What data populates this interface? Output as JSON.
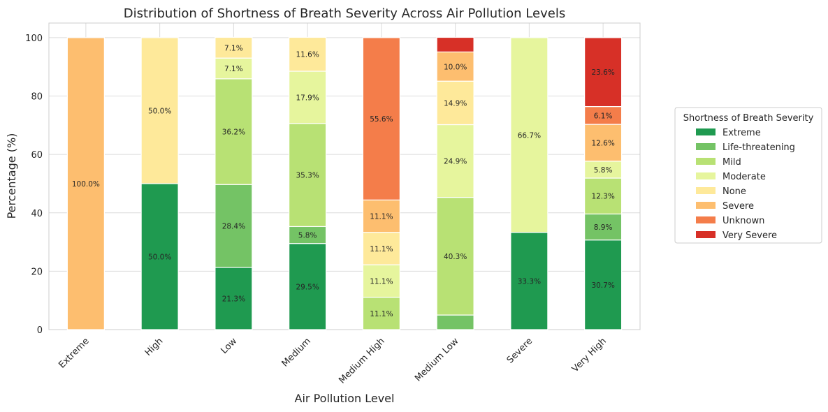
{
  "chart_data": {
    "type": "bar",
    "stacked": true,
    "title": "Distribution of Shortness of Breath Severity Across Air Pollution Levels",
    "xlabel": "Air Pollution Level",
    "ylabel": "Percentage (%)",
    "ylim": [
      0,
      105
    ],
    "yticks": [
      0,
      20,
      40,
      60,
      80,
      100
    ],
    "grid": true,
    "legend_position": "right",
    "legend_title": "Shortness of Breath Severity",
    "categories": [
      "Extreme",
      "High",
      "Low",
      "Medium",
      "Medium High",
      "Medium Low",
      "Severe",
      "Very High"
    ],
    "series": [
      {
        "name": "Extreme",
        "color": "#1f9a50",
        "values": [
          0,
          50.0,
          21.3,
          29.5,
          0,
          0,
          33.3,
          30.7
        ]
      },
      {
        "name": "Life-threatening",
        "color": "#74c365",
        "values": [
          0,
          0,
          28.4,
          5.8,
          0,
          5.0,
          0,
          8.9
        ]
      },
      {
        "name": "Mild",
        "color": "#b8e174",
        "values": [
          0,
          0,
          36.2,
          35.3,
          11.1,
          40.3,
          0,
          12.3
        ]
      },
      {
        "name": "Moderate",
        "color": "#e6f59d",
        "values": [
          0,
          0,
          7.1,
          17.9,
          11.1,
          24.9,
          66.7,
          5.8
        ]
      },
      {
        "name": "None",
        "color": "#fee99a",
        "values": [
          0,
          50.0,
          7.1,
          11.6,
          11.1,
          14.9,
          0,
          0
        ]
      },
      {
        "name": "Severe",
        "color": "#fdbe6f",
        "values": [
          100.0,
          0,
          0,
          0,
          11.1,
          10.0,
          0,
          12.6
        ]
      },
      {
        "name": "Unknown",
        "color": "#f47d4a",
        "values": [
          0,
          0,
          0,
          0,
          55.6,
          0,
          0,
          6.1
        ]
      },
      {
        "name": "Very Severe",
        "color": "#d73027",
        "values": [
          0,
          0,
          0,
          0,
          0,
          5.0,
          0,
          23.6
        ]
      }
    ],
    "label_threshold": 5.5
  }
}
